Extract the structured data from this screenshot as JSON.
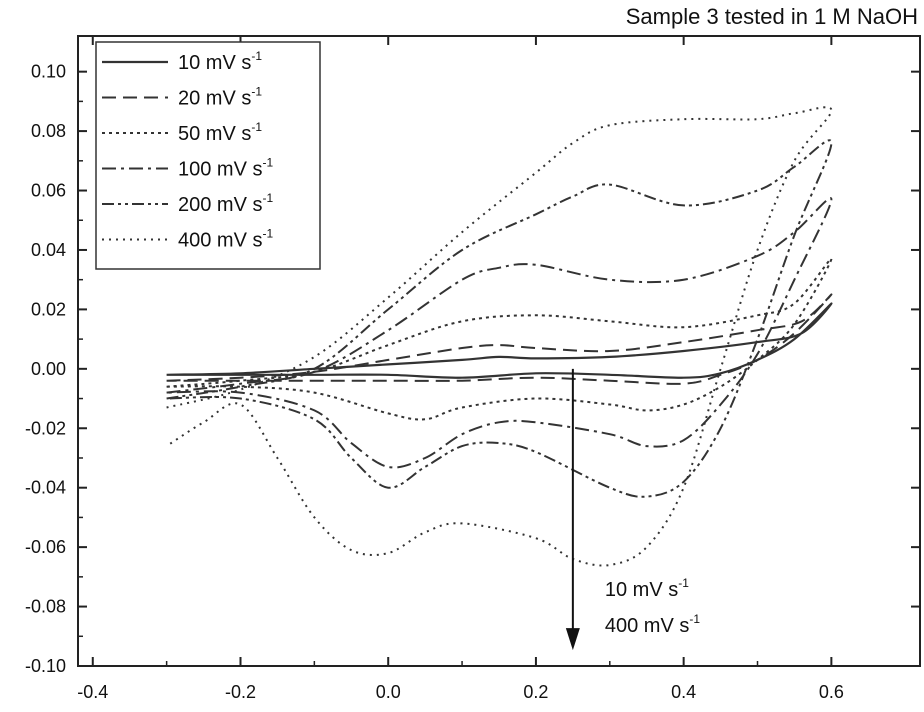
{
  "chart_data": {
    "type": "line",
    "title": "Sample 3 tested in 1 M NaOH",
    "xlabel": "",
    "ylabel": "",
    "xlim": [
      -0.42,
      0.72
    ],
    "ylim": [
      -0.1,
      0.112
    ],
    "xticks": [
      -0.4,
      -0.2,
      0.0,
      0.2,
      0.4,
      0.6
    ],
    "xtick_labels": [
      "-0.4",
      "-0.2",
      "0.0",
      "0.2",
      "0.4",
      "0.6"
    ],
    "yticks": [
      -0.1,
      -0.08,
      -0.06,
      -0.04,
      -0.02,
      0.0,
      0.02,
      0.04,
      0.06,
      0.08,
      0.1
    ],
    "ytick_labels": [
      "-0.10",
      "-0.08",
      "-0.06",
      "-0.04",
      "-0.02",
      "0.00",
      "0.02",
      "0.04",
      "0.06",
      "0.08",
      "0.10"
    ],
    "grid": false,
    "legend_position": "top-left",
    "series": [
      {
        "name": "10 mV s",
        "unit_sup": "-1",
        "dash": "",
        "width": 2.2,
        "x": [
          -0.3,
          -0.2,
          -0.1,
          0.0,
          0.1,
          0.15,
          0.2,
          0.3,
          0.4,
          0.5,
          0.56,
          0.6,
          0.55,
          0.5,
          0.45,
          0.4,
          0.3,
          0.2,
          0.1,
          0.0,
          -0.1,
          -0.2,
          -0.3
        ],
        "y": [
          -0.002,
          -0.0015,
          0.0,
          0.0015,
          0.003,
          0.004,
          0.0035,
          0.004,
          0.006,
          0.009,
          0.012,
          0.022,
          0.01,
          0.003,
          -0.0015,
          -0.003,
          -0.002,
          -0.0015,
          -0.003,
          -0.002,
          -0.002,
          -0.002,
          -0.002
        ]
      },
      {
        "name": "20 mV s",
        "unit_sup": "-1",
        "dash": "14 7",
        "width": 2.0,
        "x": [
          -0.3,
          -0.2,
          -0.1,
          0.0,
          0.1,
          0.15,
          0.2,
          0.3,
          0.4,
          0.5,
          0.56,
          0.6,
          0.55,
          0.5,
          0.45,
          0.4,
          0.3,
          0.2,
          0.1,
          0.0,
          -0.1,
          -0.2,
          -0.3
        ],
        "y": [
          -0.004,
          -0.003,
          -0.001,
          0.003,
          0.007,
          0.008,
          0.007,
          0.006,
          0.009,
          0.013,
          0.016,
          0.025,
          0.012,
          0.003,
          -0.002,
          -0.005,
          -0.004,
          -0.003,
          -0.004,
          -0.004,
          -0.004,
          -0.004,
          -0.004
        ]
      },
      {
        "name": "50 mV s",
        "unit_sup": "-1",
        "dash": "3 4",
        "width": 2.0,
        "x": [
          -0.3,
          -0.2,
          -0.1,
          0.0,
          0.1,
          0.2,
          0.3,
          0.4,
          0.5,
          0.55,
          0.6,
          0.55,
          0.5,
          0.45,
          0.4,
          0.35,
          0.3,
          0.2,
          0.1,
          0.05,
          0.0,
          -0.1,
          -0.2,
          -0.3
        ],
        "y": [
          -0.006,
          -0.004,
          -0.001,
          0.008,
          0.016,
          0.018,
          0.016,
          0.014,
          0.018,
          0.022,
          0.037,
          0.015,
          0.003,
          -0.006,
          -0.012,
          -0.014,
          -0.012,
          -0.01,
          -0.013,
          -0.017,
          -0.015,
          -0.008,
          -0.006,
          -0.006
        ]
      },
      {
        "name": "100 mV s",
        "unit_sup": "-1",
        "dash": "14 5 3 5",
        "width": 2.0,
        "x": [
          -0.3,
          -0.2,
          -0.1,
          0.0,
          0.1,
          0.15,
          0.2,
          0.3,
          0.4,
          0.5,
          0.55,
          0.6,
          0.55,
          0.5,
          0.45,
          0.4,
          0.35,
          0.3,
          0.2,
          0.15,
          0.1,
          0.05,
          0.0,
          -0.05,
          -0.1,
          -0.2,
          -0.3
        ],
        "y": [
          -0.008,
          -0.005,
          -0.001,
          0.013,
          0.03,
          0.034,
          0.035,
          0.03,
          0.03,
          0.038,
          0.046,
          0.057,
          0.03,
          0.005,
          -0.012,
          -0.024,
          -0.026,
          -0.022,
          -0.018,
          -0.018,
          -0.022,
          -0.03,
          -0.033,
          -0.025,
          -0.014,
          -0.008,
          -0.008
        ]
      },
      {
        "name": "200 mV s",
        "unit_sup": "-1",
        "dash": "12 4 3 4 3 4",
        "width": 2.0,
        "x": [
          -0.3,
          -0.2,
          -0.1,
          0.0,
          0.1,
          0.2,
          0.25,
          0.3,
          0.4,
          0.5,
          0.55,
          0.6,
          0.55,
          0.5,
          0.45,
          0.4,
          0.35,
          0.3,
          0.2,
          0.15,
          0.1,
          0.05,
          0.0,
          -0.05,
          -0.1,
          -0.2,
          -0.3
        ],
        "y": [
          -0.01,
          -0.006,
          0.0,
          0.02,
          0.04,
          0.052,
          0.058,
          0.062,
          0.055,
          0.06,
          0.068,
          0.076,
          0.045,
          0.01,
          -0.02,
          -0.038,
          -0.043,
          -0.04,
          -0.028,
          -0.025,
          -0.026,
          -0.033,
          -0.04,
          -0.03,
          -0.017,
          -0.01,
          -0.01
        ]
      },
      {
        "name": "400 mV s",
        "unit_sup": "-1",
        "dash": "2 5",
        "width": 2.0,
        "x": [
          -0.3,
          -0.2,
          -0.1,
          0.0,
          0.1,
          0.2,
          0.25,
          0.3,
          0.4,
          0.5,
          0.55,
          0.6,
          0.55,
          0.5,
          0.45,
          0.4,
          0.35,
          0.3,
          0.25,
          0.2,
          0.1,
          0.05,
          0.0,
          -0.05,
          -0.1,
          -0.15,
          -0.2,
          -0.25,
          -0.3
        ],
        "y": [
          -0.013,
          -0.007,
          0.004,
          0.024,
          0.046,
          0.066,
          0.076,
          0.082,
          0.084,
          0.084,
          0.086,
          0.087,
          0.07,
          0.04,
          0.0,
          -0.04,
          -0.06,
          -0.066,
          -0.064,
          -0.057,
          -0.052,
          -0.055,
          -0.062,
          -0.061,
          -0.05,
          -0.03,
          -0.012,
          -0.018,
          -0.026
        ]
      }
    ],
    "annotation": {
      "arrow_x": 0.25,
      "arrow_y_start": 0.0,
      "arrow_y_end": -0.094,
      "label_top": "10 mV s",
      "label_top_sup": "-1",
      "label_bottom": "400 mV s",
      "label_bottom_sup": "-1"
    }
  }
}
